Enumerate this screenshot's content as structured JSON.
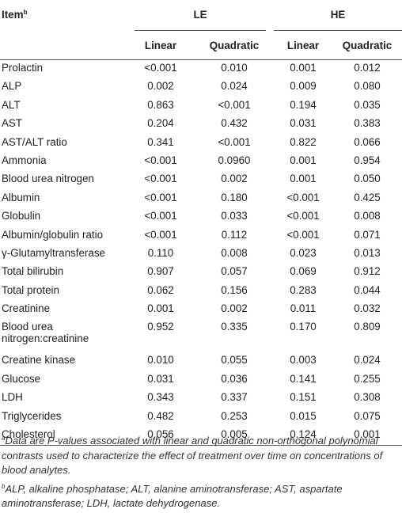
{
  "table": {
    "item_label": "Item",
    "item_sup": "b",
    "groups": [
      "LE",
      "HE"
    ],
    "subheaders": [
      "Linear",
      "Quadratic",
      "Linear",
      "Quadratic"
    ],
    "rows": [
      {
        "name": "Prolactin",
        "values": [
          "<0.001",
          "0.010",
          "0.001",
          "0.012"
        ]
      },
      {
        "name": "ALP",
        "values": [
          "0.002",
          "0.024",
          "0.009",
          "0.080"
        ]
      },
      {
        "name": "ALT",
        "values": [
          "0.863",
          "<0.001",
          "0.194",
          "0.035"
        ]
      },
      {
        "name": "AST",
        "values": [
          "0.204",
          "0.432",
          "0.031",
          "0.383"
        ]
      },
      {
        "name": "AST/ALT ratio",
        "values": [
          "0.341",
          "<0.001",
          "0.822",
          "0.066"
        ]
      },
      {
        "name": "Ammonia",
        "values": [
          "<0.001",
          "0.0960",
          "0.001",
          "0.954"
        ]
      },
      {
        "name": "Blood urea nitrogen",
        "values": [
          "<0.001",
          "0.002",
          "0.001",
          "0.050"
        ]
      },
      {
        "name": "Albumin",
        "values": [
          "<0.001",
          "0.180",
          "<0.001",
          "0.425"
        ]
      },
      {
        "name": "Globulin",
        "values": [
          "<0.001",
          "0.033",
          "<0.001",
          "0.008"
        ]
      },
      {
        "name": "Albumin/globulin ratio",
        "values": [
          "<0.001",
          "0.112",
          "<0.001",
          "0.071"
        ]
      },
      {
        "name": "γ-Glutamyltransferase",
        "values": [
          "0.110",
          "0.008",
          "0.023",
          "0.013"
        ]
      },
      {
        "name": "Total bilirubin",
        "values": [
          "0.907",
          "0.057",
          "0.069",
          "0.912"
        ]
      },
      {
        "name": "Total protein",
        "values": [
          "0.062",
          "0.156",
          "0.283",
          "0.044"
        ]
      },
      {
        "name": "Creatinine",
        "values": [
          "0.001",
          "0.002",
          "0.011",
          "0.032"
        ]
      },
      {
        "name": "Blood urea nitrogen:creatinine",
        "values": [
          "0.952",
          "0.335",
          "0.170",
          "0.809"
        ]
      },
      {
        "name": "Creatine kinase",
        "values": [
          "0.010",
          "0.055",
          "0.003",
          "0.024"
        ]
      },
      {
        "name": "Glucose",
        "values": [
          "0.031",
          "0.036",
          "0.141",
          "0.255"
        ]
      },
      {
        "name": "LDH",
        "values": [
          "0.343",
          "0.337",
          "0.151",
          "0.308"
        ]
      },
      {
        "name": "Triglycerides",
        "values": [
          "0.482",
          "0.253",
          "0.015",
          "0.075"
        ]
      },
      {
        "name": "Cholesterol",
        "values": [
          "0.056",
          "0.005",
          "0.124",
          "0.001"
        ]
      }
    ]
  },
  "footnotes": {
    "a_sup": "a",
    "a_text": "Data are P-values associated with linear and quadratic non-orthogonal polynomial contrasts used to characterize the effect of treatment over time on concentrations of blood analytes.",
    "b_sup": "b",
    "b_text": "ALP, alkaline phosphatase; ALT, alanine aminotransferase; AST, aspartate aminotransferase; LDH, lactate dehydrogenase."
  }
}
